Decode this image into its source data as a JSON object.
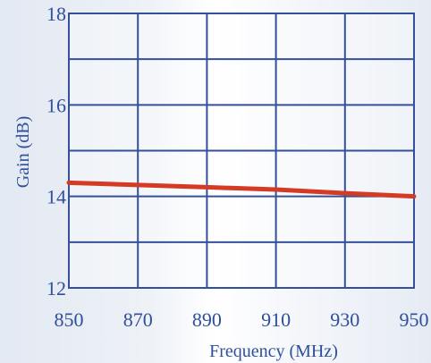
{
  "chart_data": {
    "type": "line",
    "title": "",
    "xlabel": "Frequency (MHz)",
    "ylabel": "Gain (dB)",
    "xlim": [
      850,
      950
    ],
    "ylim": [
      12,
      18
    ],
    "x_ticks": [
      850,
      870,
      890,
      910,
      930,
      950
    ],
    "x_tick_labels": [
      "850",
      "870",
      "890",
      "910",
      "930",
      "950"
    ],
    "y_ticks": [
      12,
      14,
      16,
      18
    ],
    "y_tick_labels": [
      "12",
      "14",
      "16",
      "18"
    ],
    "grid": true,
    "y_gridlines": [
      12,
      13,
      14,
      15,
      16,
      17,
      18
    ],
    "series": [
      {
        "x": [
          850,
          870,
          890,
          910,
          930,
          950
        ],
        "y": [
          14.3,
          14.25,
          14.2,
          14.15,
          14.07,
          14.0
        ]
      }
    ]
  },
  "colors": {
    "background": "#ffffff",
    "shade": "#e7edf5",
    "grid": "#34509a",
    "text": "#2e4f9a",
    "line": "#d53a24"
  }
}
